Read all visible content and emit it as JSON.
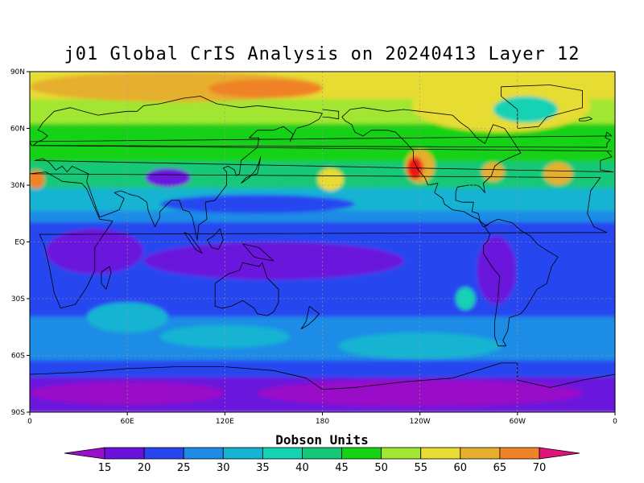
{
  "chart_data": {
    "type": "heatmap",
    "title": "j01 Global CrIS Analysis on 20240413 Layer 12",
    "colorbar_label": "Dobson Units",
    "x_ticks": [
      "0",
      "60E",
      "120E",
      "180",
      "120W",
      "60W",
      "0"
    ],
    "y_ticks": [
      "90N",
      "60N",
      "30N",
      "EQ",
      "30S",
      "60S",
      "90S"
    ],
    "x_range": [
      0,
      360
    ],
    "y_range": [
      -90,
      90
    ],
    "grid": true,
    "levels": [
      15,
      20,
      25,
      30,
      35,
      40,
      45,
      50,
      55,
      60,
      65,
      70
    ],
    "level_labels": [
      "15",
      "20",
      "25",
      "30",
      "35",
      "40",
      "45",
      "50",
      "55",
      "60",
      "65",
      "70"
    ],
    "colors": [
      "#9a10c8",
      "#6a12dc",
      "#2846f0",
      "#1e8ce6",
      "#14b4d2",
      "#14d2b4",
      "#14c878",
      "#14d214",
      "#a0e632",
      "#e6dc32",
      "#e6af2d",
      "#f08228",
      "#f01414",
      "#e0147a"
    ],
    "bands": [
      {
        "lat_top": 90,
        "lat_bottom": 75,
        "color": "#e6dc32"
      },
      {
        "lat_top": 75,
        "lat_bottom": 62,
        "color": "#a0e632"
      },
      {
        "lat_top": 62,
        "lat_bottom": 42,
        "color": "#14d214"
      },
      {
        "lat_top": 42,
        "lat_bottom": 28,
        "color": "#14c878"
      },
      {
        "lat_top": 28,
        "lat_bottom": 16,
        "color": "#14b4d2"
      },
      {
        "lat_top": 16,
        "lat_bottom": 10,
        "color": "#1e8ce6"
      },
      {
        "lat_top": 10,
        "lat_bottom": -40,
        "color": "#2846f0"
      },
      {
        "lat_top": -40,
        "lat_bottom": -63,
        "color": "#1e8ce6"
      },
      {
        "lat_top": -63,
        "lat_bottom": -72,
        "color": "#2846f0"
      },
      {
        "lat_top": -72,
        "lat_bottom": -90,
        "color": "#6a12dc"
      }
    ],
    "features": [
      {
        "lon": 90,
        "lat": 82,
        "rx": 90,
        "ry": 8,
        "color": "#e6af2d"
      },
      {
        "lon": 145,
        "lat": 81,
        "rx": 35,
        "ry": 5,
        "color": "#f08228"
      },
      {
        "lon": 290,
        "lat": 72,
        "rx": 55,
        "ry": 14,
        "color": "#e6dc32"
      },
      {
        "lon": 305,
        "lat": 70,
        "rx": 20,
        "ry": 7,
        "color": "#14d2b4"
      },
      {
        "lon": 240,
        "lat": 40,
        "rx": 9,
        "ry": 9,
        "color": "#e6af2d"
      },
      {
        "lon": 237,
        "lat": 39,
        "rx": 5,
        "ry": 6,
        "color": "#f01414"
      },
      {
        "lon": 4,
        "lat": 33,
        "rx": 5,
        "ry": 5,
        "color": "#f08228"
      },
      {
        "lon": 325,
        "lat": 36,
        "rx": 9,
        "ry": 6,
        "color": "#e6af2d"
      },
      {
        "lon": 285,
        "lat": 37,
        "rx": 7,
        "ry": 5,
        "color": "#e6af2d"
      },
      {
        "lon": 185,
        "lat": 33,
        "rx": 8,
        "ry": 6,
        "color": "#e6dc32"
      },
      {
        "lon": 85,
        "lat": 34,
        "rx": 14,
        "ry": 5,
        "color": "#6a12dc"
      },
      {
        "lon": 140,
        "lat": 20,
        "rx": 60,
        "ry": 5,
        "color": "#2846f0"
      },
      {
        "lon": 150,
        "lat": -10,
        "rx": 80,
        "ry": 10,
        "color": "#6a12dc"
      },
      {
        "lon": 40,
        "lat": -5,
        "rx": 30,
        "ry": 12,
        "color": "#6a12dc"
      },
      {
        "lon": 287,
        "lat": -15,
        "rx": 12,
        "ry": 18,
        "color": "#6a12dc"
      },
      {
        "lon": 268,
        "lat": -30,
        "rx": 6,
        "ry": 6,
        "color": "#14d2b4"
      },
      {
        "lon": 60,
        "lat": -40,
        "rx": 25,
        "ry": 8,
        "color": "#14b4d2"
      },
      {
        "lon": 120,
        "lat": -50,
        "rx": 40,
        "ry": 6,
        "color": "#14b4d2"
      },
      {
        "lon": 240,
        "lat": -55,
        "rx": 50,
        "ry": 7,
        "color": "#14b4d2"
      },
      {
        "lon": 60,
        "lat": -80,
        "rx": 60,
        "ry": 6,
        "color": "#9a10c8"
      },
      {
        "lon": 240,
        "lat": -80,
        "rx": 100,
        "ry": 7,
        "color": "#9a10c8"
      }
    ]
  }
}
